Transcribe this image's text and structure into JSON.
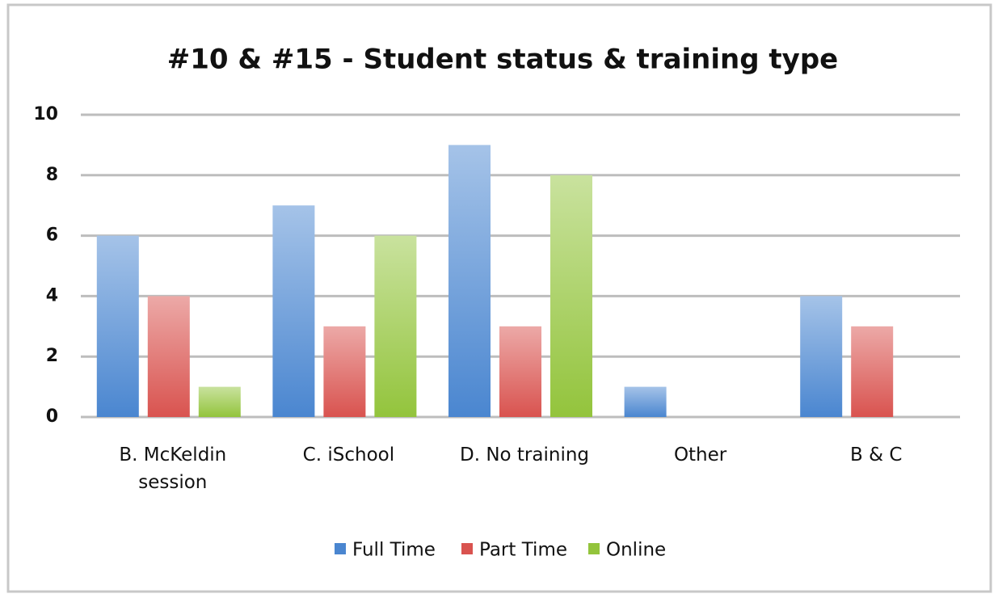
{
  "chart_data": {
    "type": "bar",
    "title": "#10 & #15 - Student status & training type",
    "categories": [
      "B. McKeldin session",
      "C. iSchool",
      "D. No training",
      "Other",
      "B & C"
    ],
    "series": [
      {
        "name": "Full Time",
        "color": "#4a86d0",
        "values": [
          6,
          7,
          9,
          1,
          4
        ]
      },
      {
        "name": "Part Time",
        "color": "#d9534f",
        "values": [
          4,
          3,
          3,
          0,
          3
        ]
      },
      {
        "name": "Online",
        "color": "#93c43c",
        "values": [
          1,
          6,
          8,
          0,
          0
        ]
      }
    ],
    "ylim": [
      0,
      10
    ],
    "yticks": [
      0,
      2,
      4,
      6,
      8,
      10
    ],
    "grid": true,
    "legend": "bottom"
  }
}
